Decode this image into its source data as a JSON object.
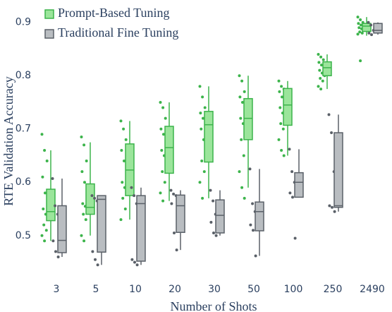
{
  "chart_data": {
    "type": "box",
    "ylabel": "RTE Validation Accuracy",
    "xlabel": "Number of Shots",
    "categories": [
      "3",
      "5",
      "10",
      "20",
      "30",
      "50",
      "100",
      "250",
      "2490"
    ],
    "ylim": [
      0.452,
      0.942
    ],
    "yticks": [
      0.5,
      0.6,
      0.7,
      0.8,
      0.9
    ],
    "legend": "top-left",
    "series": [
      {
        "name": "Prompt-Based Tuning",
        "color": "#3cb44b",
        "fill": "#9be59b",
        "boxes": [
          {
            "low": 0.49,
            "q1": 0.528,
            "median": 0.545,
            "q3": 0.587,
            "high": 0.66
          },
          {
            "low": 0.5,
            "q1": 0.54,
            "median": 0.553,
            "q3": 0.597,
            "high": 0.675
          },
          {
            "low": 0.53,
            "q1": 0.575,
            "median": 0.623,
            "q3": 0.672,
            "high": 0.715
          },
          {
            "low": 0.565,
            "q1": 0.617,
            "median": 0.665,
            "q3": 0.705,
            "high": 0.75
          },
          {
            "low": 0.57,
            "q1": 0.638,
            "median": 0.708,
            "q3": 0.733,
            "high": 0.78
          },
          {
            "low": 0.59,
            "q1": 0.68,
            "median": 0.72,
            "q3": 0.757,
            "high": 0.8
          },
          {
            "low": 0.65,
            "q1": 0.707,
            "median": 0.745,
            "q3": 0.776,
            "high": 0.79
          },
          {
            "low": 0.775,
            "q1": 0.8,
            "median": 0.815,
            "q3": 0.826,
            "high": 0.84
          },
          {
            "low": 0.875,
            "q1": 0.883,
            "median": 0.893,
            "q3": 0.898,
            "high": 0.91
          }
        ],
        "points": [
          [
            0.69,
            0.66,
            0.64,
            0.61,
            0.58,
            0.56,
            0.55,
            0.54,
            0.53,
            0.52,
            0.51,
            0.5,
            0.49
          ],
          [
            0.685,
            0.67,
            0.64,
            0.62,
            0.6,
            0.58,
            0.56,
            0.555,
            0.55,
            0.54,
            0.53,
            0.5,
            0.49
          ],
          [
            0.715,
            0.7,
            0.68,
            0.66,
            0.64,
            0.62,
            0.6,
            0.59,
            0.58,
            0.57,
            0.55,
            0.53
          ],
          [
            0.75,
            0.74,
            0.72,
            0.7,
            0.69,
            0.67,
            0.66,
            0.65,
            0.63,
            0.62,
            0.6,
            0.58,
            0.565
          ],
          [
            0.78,
            0.76,
            0.74,
            0.73,
            0.72,
            0.71,
            0.7,
            0.68,
            0.66,
            0.64,
            0.62,
            0.6,
            0.57
          ],
          [
            0.8,
            0.79,
            0.77,
            0.76,
            0.75,
            0.74,
            0.72,
            0.71,
            0.69,
            0.68,
            0.65,
            0.62,
            0.59,
            0.57
          ],
          [
            0.79,
            0.78,
            0.775,
            0.77,
            0.76,
            0.75,
            0.74,
            0.73,
            0.72,
            0.71,
            0.7,
            0.68,
            0.66,
            0.65
          ],
          [
            0.84,
            0.835,
            0.83,
            0.825,
            0.82,
            0.815,
            0.81,
            0.805,
            0.8,
            0.795,
            0.79,
            0.78,
            0.775
          ],
          [
            0.91,
            0.905,
            0.9,
            0.898,
            0.895,
            0.893,
            0.89,
            0.888,
            0.885,
            0.882,
            0.88,
            0.878,
            0.828
          ]
        ]
      },
      {
        "name": "Traditional Fine Tuning",
        "color": "#5a6068",
        "fill": "#b9bdc1",
        "boxes": [
          {
            "low": 0.46,
            "q1": 0.468,
            "median": 0.491,
            "q3": 0.556,
            "high": 0.607
          },
          {
            "low": 0.445,
            "q1": 0.469,
            "median": 0.568,
            "q3": 0.575,
            "high": 0.575
          },
          {
            "low": 0.445,
            "q1": 0.452,
            "median": 0.56,
            "q3": 0.575,
            "high": 0.59
          },
          {
            "low": 0.473,
            "q1": 0.506,
            "median": 0.556,
            "q3": 0.576,
            "high": 0.585
          },
          {
            "low": 0.5,
            "q1": 0.505,
            "median": 0.538,
            "q3": 0.567,
            "high": 0.585
          },
          {
            "low": 0.462,
            "q1": 0.509,
            "median": 0.545,
            "q3": 0.563,
            "high": 0.625
          },
          {
            "low": 0.572,
            "q1": 0.572,
            "median": 0.6,
            "q3": 0.618,
            "high": 0.662
          },
          {
            "low": 0.545,
            "q1": 0.553,
            "median": 0.556,
            "q3": 0.693,
            "high": 0.727
          },
          {
            "low": 0.877,
            "q1": 0.88,
            "median": 0.885,
            "q3": 0.898,
            "high": 0.9
          }
        ],
        "points": [
          [
            0.607,
            0.556,
            0.54,
            0.49,
            0.47,
            0.46
          ],
          [
            0.575,
            0.57,
            0.565,
            0.47,
            0.455,
            0.445
          ],
          [
            0.59,
            0.575,
            0.56,
            0.455,
            0.45,
            0.445
          ],
          [
            0.585,
            0.578,
            0.575,
            0.56,
            0.505,
            0.473
          ],
          [
            0.585,
            0.565,
            0.54,
            0.525,
            0.505,
            0.5
          ],
          [
            0.625,
            0.56,
            0.545,
            0.52,
            0.51,
            0.462
          ],
          [
            0.662,
            0.62,
            0.6,
            0.58,
            0.572,
            0.495
          ],
          [
            0.727,
            0.693,
            0.62,
            0.556,
            0.553,
            0.545
          ],
          [
            0.9,
            0.895,
            0.885,
            0.88,
            0.877
          ]
        ]
      }
    ]
  }
}
